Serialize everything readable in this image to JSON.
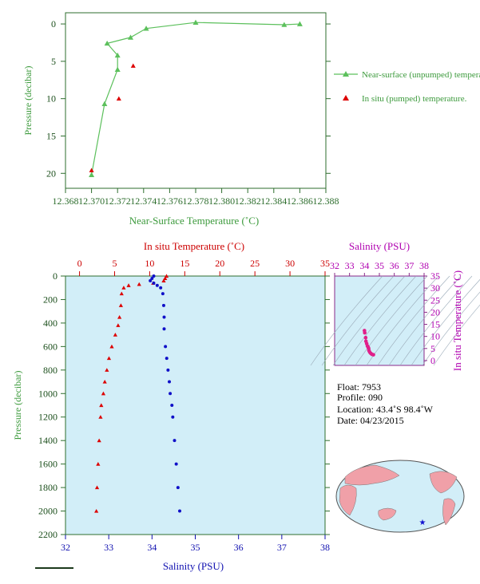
{
  "chart_data": [
    {
      "type": "line",
      "xlabel": "Near-Surface Temperature (˚C)",
      "ylabel": "Pressure (decibar)",
      "xlim": [
        12.368,
        12.388
      ],
      "ylim": [
        22,
        -1.5
      ],
      "x_ticks": [
        "12.368",
        "12.370",
        "12.372",
        "12.374",
        "12.376",
        "12.378",
        "12.380",
        "12.382",
        "12.384",
        "12.386",
        "12.388"
      ],
      "y_ticks": [
        "0",
        "5",
        "10",
        "15",
        "20"
      ],
      "series": [
        {
          "name": "Near-surface (unpumped) temperature.",
          "color": "#5cc05c",
          "marker": "triangle",
          "points": [
            [
              12.386,
              0.0
            ],
            [
              12.3848,
              0.1
            ],
            [
              12.378,
              -0.2
            ],
            [
              12.3742,
              0.6
            ],
            [
              12.373,
              1.8
            ],
            [
              12.3712,
              2.6
            ],
            [
              12.372,
              4.2
            ],
            [
              12.372,
              6.1
            ],
            [
              12.371,
              10.7
            ],
            [
              12.37,
              20.2
            ]
          ]
        },
        {
          "name": "In situ (pumped) temperature.",
          "color": "#dd0000",
          "marker": "triangle",
          "points": [
            [
              12.3732,
              5.6
            ],
            [
              12.3721,
              10.0
            ],
            [
              12.37,
              19.6
            ]
          ]
        }
      ]
    },
    {
      "type": "scatter",
      "xlabel_top": "In situ Temperature (˚C)",
      "xlabel_bottom": "Salinity (PSU)",
      "ylabel": "Pressure (decibar)",
      "temp_lim": [
        -2,
        35
      ],
      "sal_lim": [
        32,
        38
      ],
      "ylim": [
        2200,
        0
      ],
      "temp_ticks": [
        "0",
        "5",
        "10",
        "15",
        "20",
        "25",
        "30",
        "35"
      ],
      "sal_ticks": [
        "32",
        "33",
        "34",
        "35",
        "36",
        "37",
        "38"
      ],
      "p_ticks": [
        "0",
        "200",
        "400",
        "600",
        "800",
        "1000",
        "1200",
        "1400",
        "1600",
        "1800",
        "2000",
        "2200"
      ],
      "temperature_profile": [
        [
          12.4,
          0
        ],
        [
          12.2,
          20
        ],
        [
          12.0,
          40
        ],
        [
          10.5,
          60
        ],
        [
          8.5,
          70
        ],
        [
          7.0,
          80
        ],
        [
          6.3,
          100
        ],
        [
          6.0,
          150
        ],
        [
          5.9,
          250
        ],
        [
          5.7,
          350
        ],
        [
          5.5,
          420
        ],
        [
          5.1,
          500
        ],
        [
          4.6,
          600
        ],
        [
          4.2,
          700
        ],
        [
          3.9,
          800
        ],
        [
          3.6,
          900
        ],
        [
          3.4,
          1000
        ],
        [
          3.1,
          1100
        ],
        [
          3.0,
          1200
        ],
        [
          2.8,
          1400
        ],
        [
          2.65,
          1600
        ],
        [
          2.5,
          1800
        ],
        [
          2.4,
          2000
        ]
      ],
      "salinity_profile": [
        [
          34.04,
          0
        ],
        [
          34.0,
          20
        ],
        [
          33.96,
          40
        ],
        [
          34.04,
          60
        ],
        [
          34.12,
          80
        ],
        [
          34.2,
          100
        ],
        [
          34.25,
          150
        ],
        [
          34.27,
          250
        ],
        [
          34.28,
          350
        ],
        [
          34.28,
          450
        ],
        [
          34.31,
          600
        ],
        [
          34.34,
          700
        ],
        [
          34.37,
          800
        ],
        [
          34.4,
          900
        ],
        [
          34.42,
          1000
        ],
        [
          34.46,
          1100
        ],
        [
          34.48,
          1200
        ],
        [
          34.52,
          1400
        ],
        [
          34.56,
          1600
        ],
        [
          34.6,
          1800
        ],
        [
          34.64,
          2000
        ]
      ]
    },
    {
      "type": "scatter",
      "title": "Salinity (PSU)",
      "ylabel": "In situ Temperature (˚C)",
      "xlim": [
        32,
        38
      ],
      "ylim": [
        -2,
        35
      ],
      "x_ticks": [
        "32",
        "33",
        "34",
        "35",
        "36",
        "37",
        "38"
      ],
      "y_ticks": [
        "0",
        "5",
        "10",
        "15",
        "20",
        "25",
        "30",
        "35"
      ],
      "points": [
        [
          34.0,
          12.4
        ],
        [
          34.02,
          11.5
        ],
        [
          34.08,
          9.5
        ],
        [
          34.1,
          8.0
        ],
        [
          34.15,
          7.0
        ],
        [
          34.2,
          6.0
        ],
        [
          34.25,
          5.5
        ],
        [
          34.28,
          5.0
        ],
        [
          34.3,
          4.2
        ],
        [
          34.35,
          3.5
        ],
        [
          34.42,
          3.0
        ],
        [
          34.5,
          2.6
        ],
        [
          34.6,
          2.4
        ]
      ]
    }
  ],
  "info": {
    "float": "Float:  7953",
    "profile": "Profile:  090",
    "location": "Location:  43.4˚S  98.4˚W",
    "date": "Date:  04/23/2015"
  }
}
